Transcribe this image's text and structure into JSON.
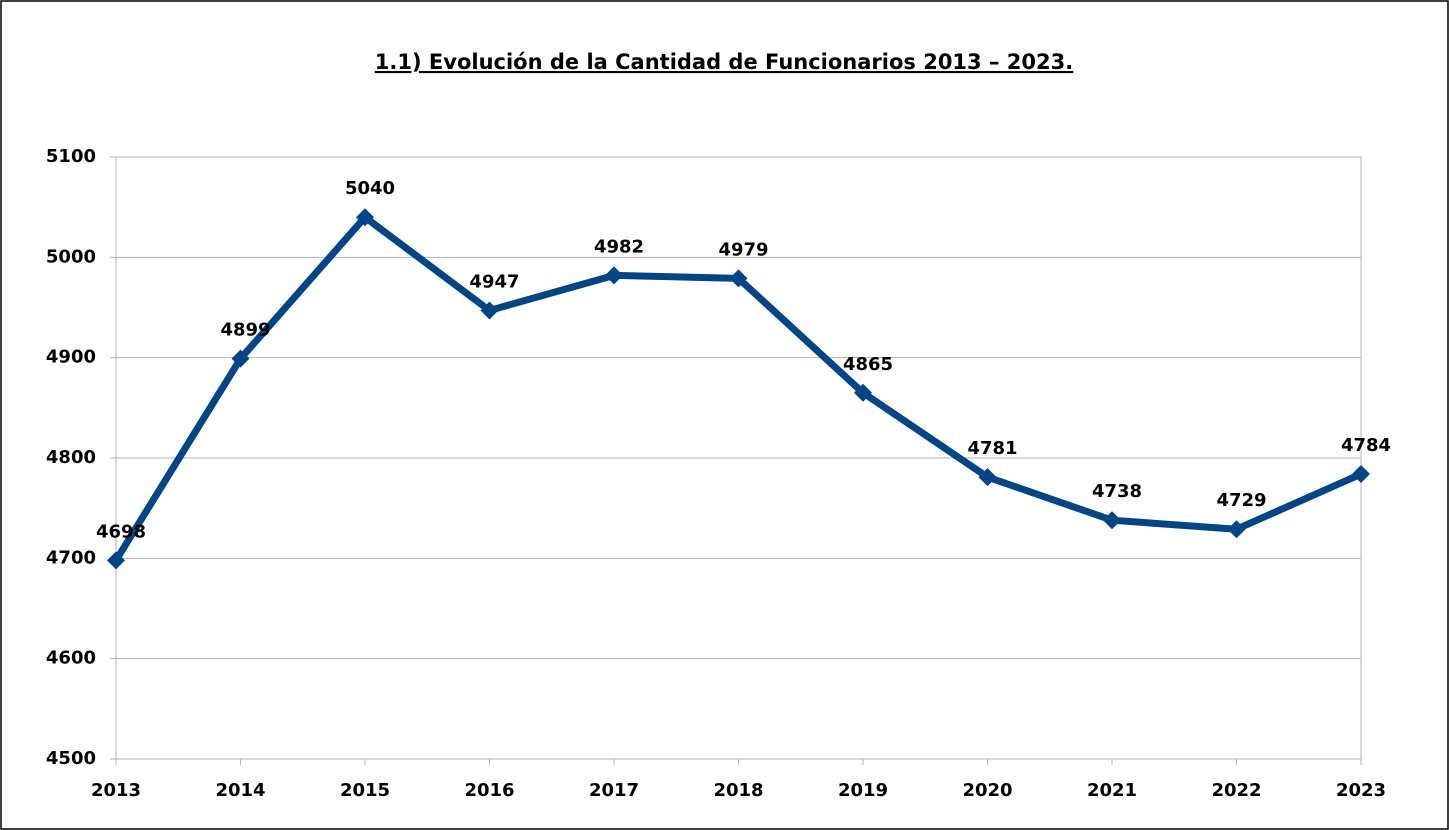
{
  "chart_data": {
    "type": "line",
    "title": "1.1) Evolución de la Cantidad de Funcionarios 2013 – 2023.",
    "categories": [
      "2013",
      "2014",
      "2015",
      "2016",
      "2017",
      "2018",
      "2019",
      "2020",
      "2021",
      "2022",
      "2023"
    ],
    "series": [
      {
        "name": "Funcionarios",
        "color": "#004586",
        "values": [
          4698,
          4899,
          5040,
          4947,
          4982,
          4979,
          4865,
          4781,
          4738,
          4729,
          4784
        ]
      }
    ],
    "ylim": [
      4500,
      5100
    ],
    "yticks": [
      4500,
      4600,
      4700,
      4800,
      4900,
      5000,
      5100
    ],
    "grid": true
  }
}
